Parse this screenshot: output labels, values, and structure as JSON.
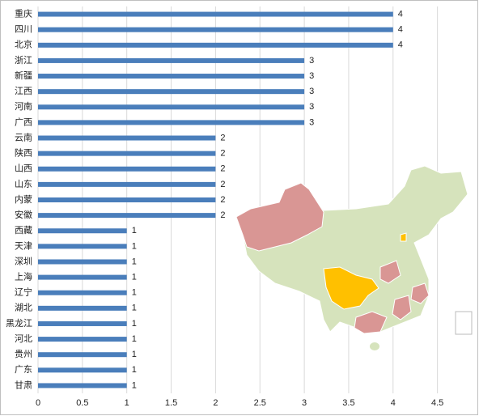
{
  "chart_data": {
    "type": "bar",
    "orientation": "horizontal",
    "categories": [
      "重庆",
      "四川",
      "北京",
      "浙江",
      "新疆",
      "江西",
      "河南",
      "广西",
      "云南",
      "陕西",
      "山西",
      "山东",
      "内蒙",
      "安徽",
      "西藏",
      "天津",
      "深圳",
      "上海",
      "辽宁",
      "湖北",
      "黑龙江",
      "河北",
      "贵州",
      "广东",
      "甘肃"
    ],
    "values": [
      4,
      4,
      4,
      3,
      3,
      3,
      3,
      3,
      2,
      2,
      2,
      2,
      2,
      2,
      1,
      1,
      1,
      1,
      1,
      1,
      1,
      1,
      1,
      1,
      1
    ],
    "color": "#4a7ebb",
    "xlim": [
      0,
      4.95
    ],
    "xticks": [
      0,
      0.5,
      1,
      1.5,
      2,
      2.5,
      3,
      3.5,
      4,
      4.5
    ],
    "grid": true
  }
}
